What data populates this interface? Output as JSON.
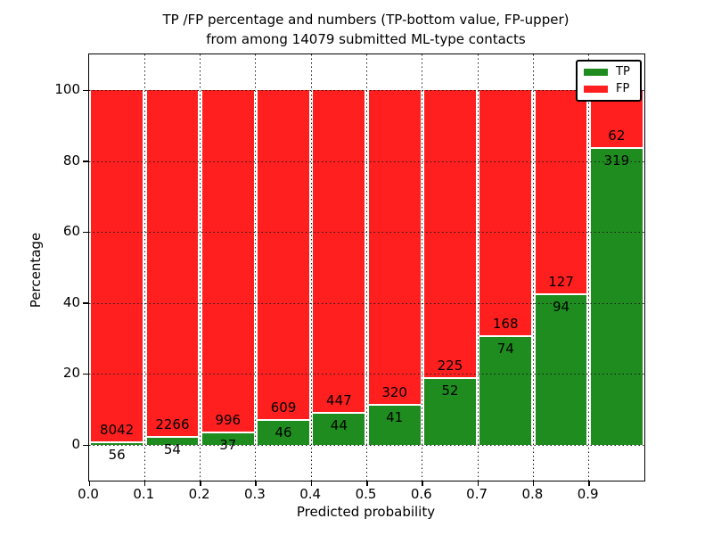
{
  "title": {
    "line1": "TP /FP percentage and numbers (TP-bottom value, FP-upper)",
    "line2": "from among 14079 submitted ML-type contacts"
  },
  "axes": {
    "xlabel": "Predicted probability",
    "ylabel": "Percentage",
    "xtick_labels": [
      "0.0",
      "0.1",
      "0.2",
      "0.3",
      "0.4",
      "0.5",
      "0.6",
      "0.7",
      "0.8",
      "0.9"
    ],
    "ytick_labels": [
      "0",
      "20",
      "40",
      "60",
      "80",
      "100"
    ]
  },
  "legend": {
    "items": [
      {
        "label": "TP",
        "color": "#1e8c1e",
        "swatch": "tp-swatch"
      },
      {
        "label": "FP",
        "color": "#ff1f1f",
        "swatch": "fp-swatch"
      }
    ]
  },
  "colors": {
    "tp_green": "#1e8c1e",
    "fp_red": "#ff1f1f",
    "grid": "#1a1a1a",
    "frame": "#000000"
  },
  "chart_data": {
    "type": "bar",
    "variant": "stacked-percentage",
    "title": "TP /FP percentage and numbers (TP-bottom value, FP-upper) from among 14079 submitted ML-type contacts",
    "xlabel": "Predicted probability",
    "ylabel": "Percentage",
    "total_contacts": 14079,
    "xlim": [
      0.0,
      1.0
    ],
    "ylim": [
      -10,
      110
    ],
    "xticks": [
      0.0,
      0.1,
      0.2,
      0.3,
      0.4,
      0.5,
      0.6,
      0.7,
      0.8,
      0.9
    ],
    "yticks": [
      0,
      20,
      40,
      60,
      80,
      100
    ],
    "grid": {
      "visible": true,
      "style": "dotted",
      "on_top_of_bars": true
    },
    "legend_position": "upper right",
    "bin_width": 0.1,
    "bins": [
      {
        "x_start": 0.0,
        "x_end": 0.1,
        "tp": 56,
        "fp": 8042,
        "tp_percent": 0.69
      },
      {
        "x_start": 0.1,
        "x_end": 0.2,
        "tp": 54,
        "fp": 2266,
        "tp_percent": 2.33
      },
      {
        "x_start": 0.2,
        "x_end": 0.3,
        "tp": 37,
        "fp": 996,
        "tp_percent": 3.58
      },
      {
        "x_start": 0.3,
        "x_end": 0.4,
        "tp": 46,
        "fp": 609,
        "tp_percent": 7.02
      },
      {
        "x_start": 0.4,
        "x_end": 0.5,
        "tp": 44,
        "fp": 447,
        "tp_percent": 8.96
      },
      {
        "x_start": 0.5,
        "x_end": 0.6,
        "tp": 41,
        "fp": 320,
        "tp_percent": 11.36
      },
      {
        "x_start": 0.6,
        "x_end": 0.7,
        "tp": 52,
        "fp": 225,
        "tp_percent": 18.77
      },
      {
        "x_start": 0.7,
        "x_end": 0.8,
        "tp": 74,
        "fp": 168,
        "tp_percent": 30.58
      },
      {
        "x_start": 0.8,
        "x_end": 0.9,
        "tp": 94,
        "fp": 127,
        "tp_percent": 42.53
      },
      {
        "x_start": 0.9,
        "x_end": 1.0,
        "tp": 319,
        "fp": 62,
        "tp_percent": 83.73
      }
    ],
    "series": [
      {
        "name": "TP",
        "color": "#1e8c1e",
        "values": [
          56,
          54,
          37,
          46,
          44,
          41,
          52,
          74,
          94,
          319
        ]
      },
      {
        "name": "FP",
        "color": "#ff1f1f",
        "values": [
          8042,
          2266,
          996,
          609,
          447,
          320,
          225,
          168,
          127,
          62
        ]
      }
    ]
  }
}
